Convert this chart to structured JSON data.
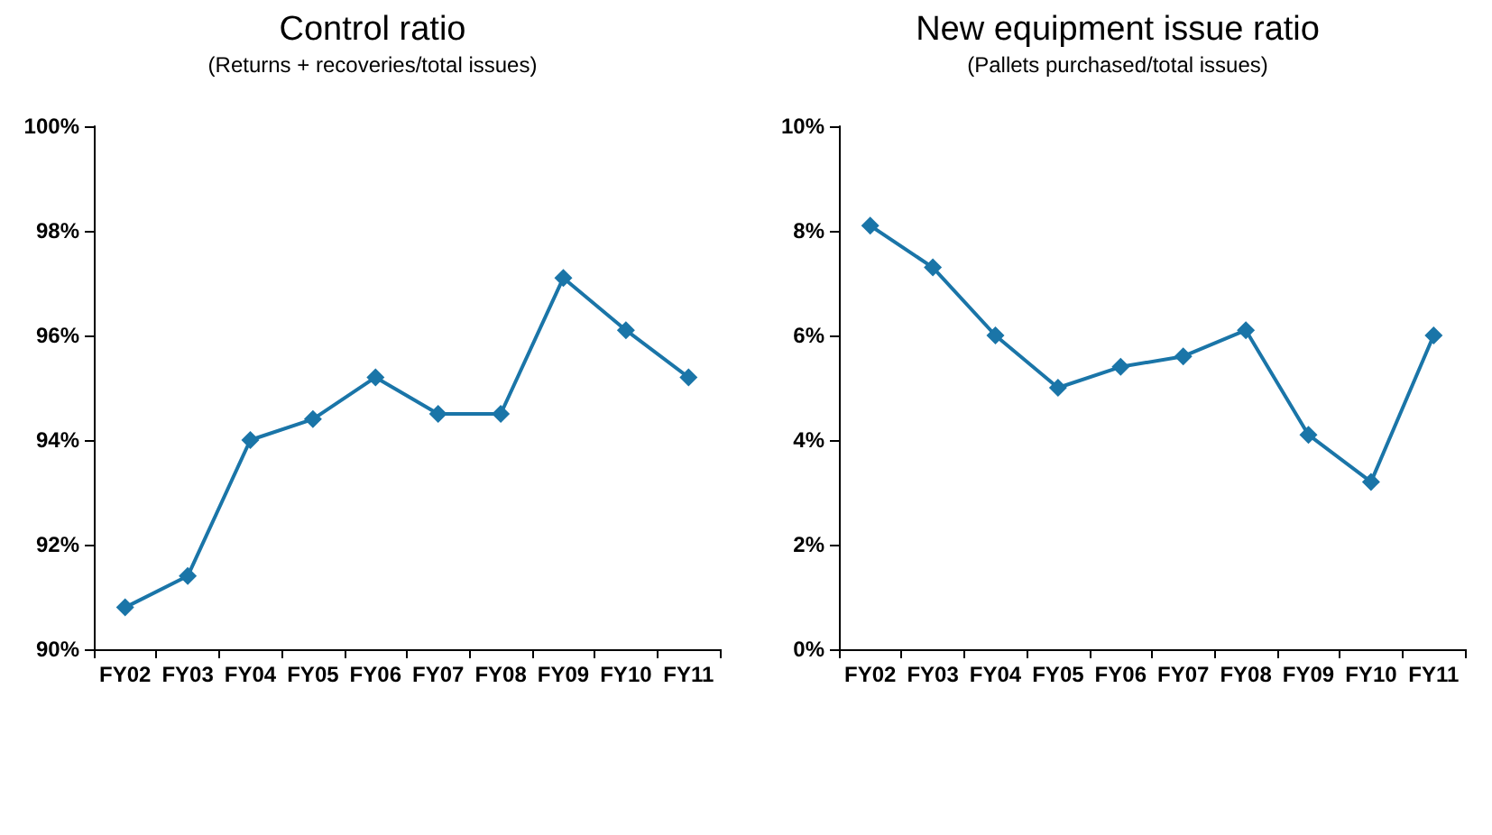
{
  "chart_data": [
    {
      "type": "line",
      "title": "Control ratio",
      "subtitle": "(Returns + recoveries/total issues)",
      "categories": [
        "FY02",
        "FY03",
        "FY04",
        "FY05",
        "FY06",
        "FY07",
        "FY08",
        "FY09",
        "FY10",
        "FY11"
      ],
      "series": [
        {
          "color": "#1a75a8",
          "values": [
            90.8,
            91.4,
            94.0,
            94.4,
            95.2,
            94.5,
            94.5,
            97.1,
            96.1,
            95.2
          ]
        }
      ],
      "ylim": [
        90,
        100
      ],
      "yticks": [
        {
          "value": 90,
          "label": "90%"
        },
        {
          "value": 92,
          "label": "92%"
        },
        {
          "value": 94,
          "label": "94%"
        },
        {
          "value": 96,
          "label": "96%"
        },
        {
          "value": 98,
          "label": "98%"
        },
        {
          "value": 100,
          "label": "100%"
        }
      ],
      "grid": false,
      "marker": "diamond",
      "line_style": "solid"
    },
    {
      "type": "line",
      "title": "New equipment issue ratio",
      "subtitle": "(Pallets purchased/total issues)",
      "categories": [
        "FY02",
        "FY03",
        "FY04",
        "FY05",
        "FY06",
        "FY07",
        "FY08",
        "FY09",
        "FY10",
        "FY11"
      ],
      "series": [
        {
          "color": "#1a75a8",
          "values": [
            8.1,
            7.3,
            6.0,
            5.0,
            5.4,
            5.6,
            6.1,
            4.1,
            3.2,
            6.0
          ]
        }
      ],
      "ylim": [
        0,
        10
      ],
      "yticks": [
        {
          "value": 0,
          "label": "0%"
        },
        {
          "value": 2,
          "label": "2%"
        },
        {
          "value": 4,
          "label": "4%"
        },
        {
          "value": 6,
          "label": "6%"
        },
        {
          "value": 8,
          "label": "8%"
        },
        {
          "value": 10,
          "label": "10%"
        }
      ],
      "grid": false,
      "marker": "diamond",
      "line_style": "solid"
    }
  ]
}
